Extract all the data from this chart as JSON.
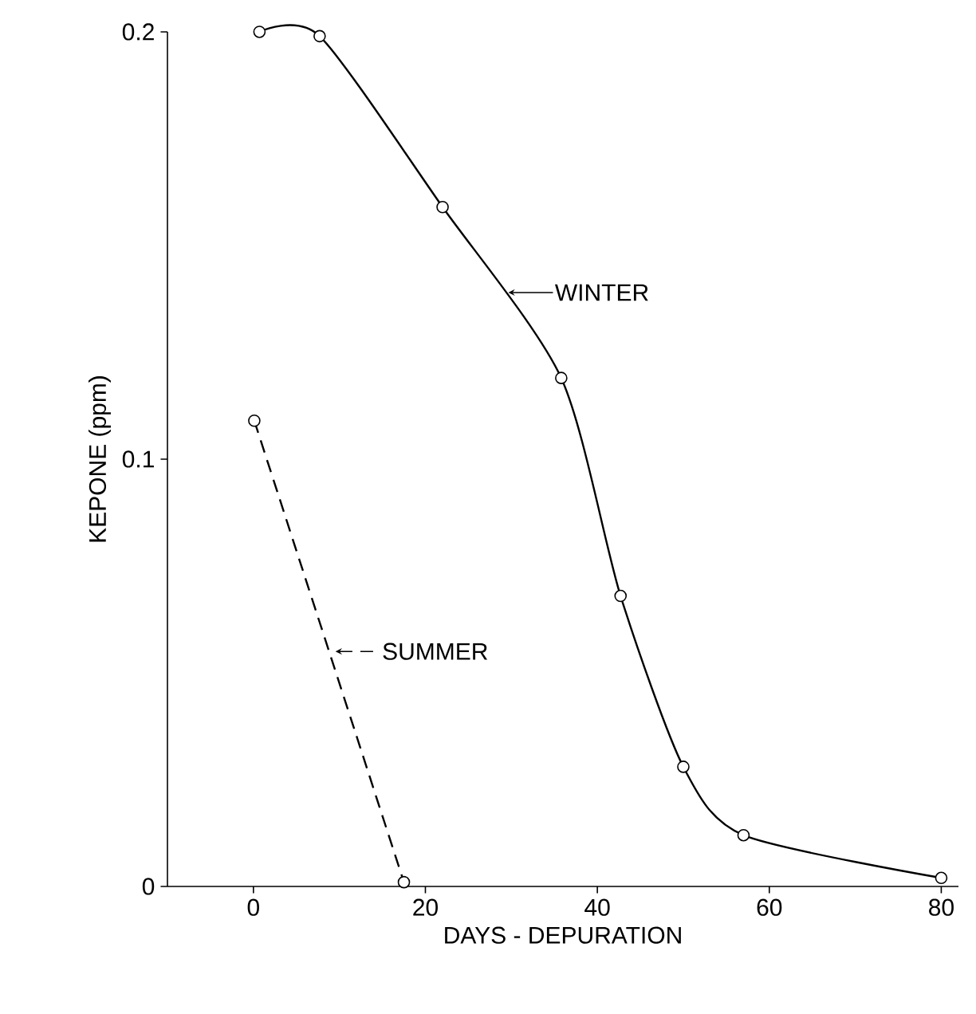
{
  "chart_data": {
    "type": "line",
    "xlabel": "DAYS - DEPURATION",
    "ylabel": "KEPONE (ppm)",
    "xlim": [
      -10,
      82
    ],
    "ylim": [
      0,
      0.2
    ],
    "xticks": [
      0,
      20,
      40,
      60,
      80
    ],
    "yticks": [
      0,
      0.1,
      0.2
    ],
    "grid": false,
    "legend": "center",
    "marker": "circle",
    "series": [
      {
        "name": "WINTER",
        "color": "#000000",
        "line_style": "solid",
        "x": [
          0.7,
          7.7,
          22,
          35.8,
          42.7,
          50,
          57,
          80
        ],
        "values": [
          0.2,
          0.199,
          0.159,
          0.119,
          0.068,
          0.028,
          0.012,
          0.002
        ]
      },
      {
        "name": "SUMMER",
        "color": "#000000",
        "line_style": "dashed",
        "x": [
          0.1,
          17.5
        ],
        "values": [
          0.109,
          0.001
        ]
      }
    ]
  }
}
